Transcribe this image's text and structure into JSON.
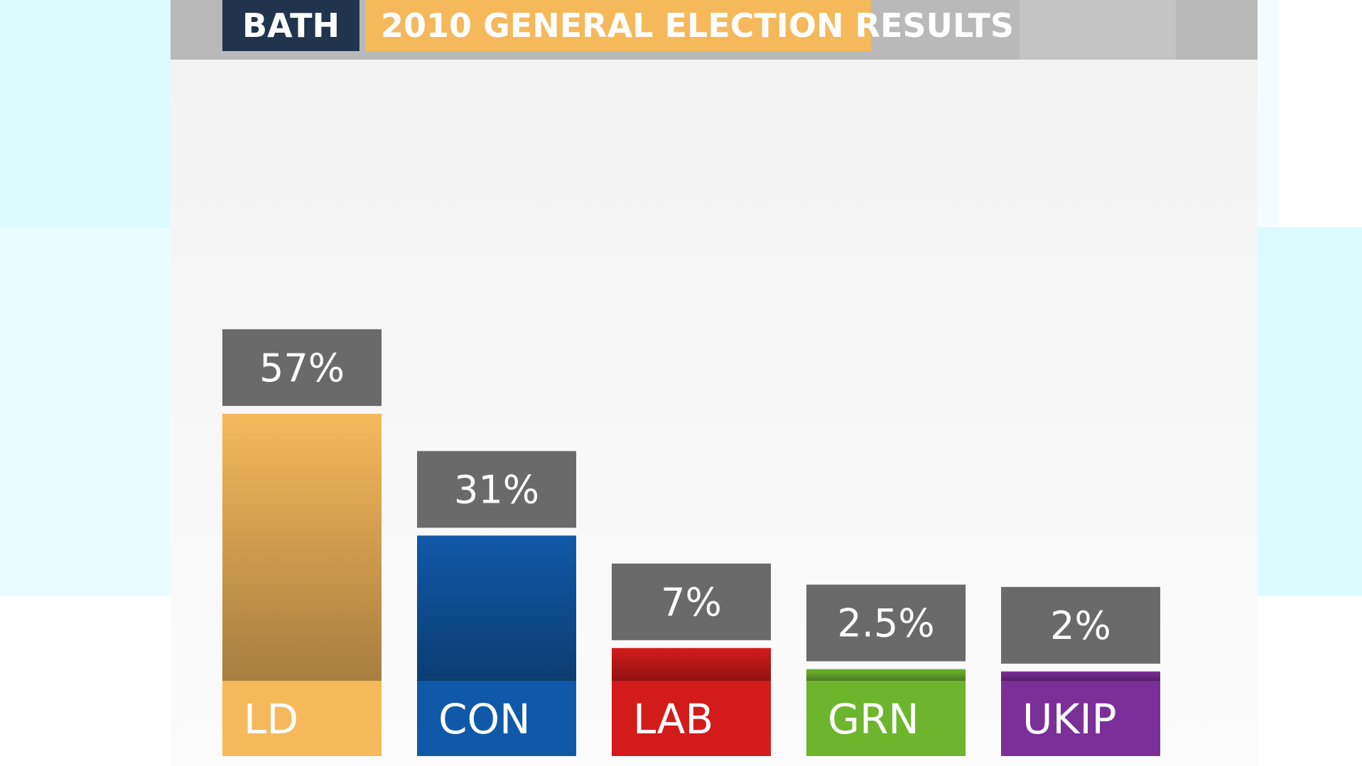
{
  "header": {
    "place": "BATH",
    "title": "2010 GENERAL ELECTION RESULTS"
  },
  "colors": {
    "label_box": "#6a6a6a",
    "title_place_bg": "#20344e",
    "title_bg": "#f5b95c"
  },
  "chart_data": {
    "type": "bar",
    "title": "2010 GENERAL ELECTION RESULTS",
    "categories": [
      "LD",
      "CON",
      "LAB",
      "GRN",
      "UKIP"
    ],
    "values": [
      57,
      31,
      7,
      2.5,
      2
    ],
    "value_labels": [
      "57%",
      "31%",
      "7%",
      "2.5%",
      "2%"
    ],
    "colors": [
      "#f5b95c",
      "#1059a8",
      "#d41b1b",
      "#6db52d",
      "#7b2f98"
    ],
    "xlabel": "",
    "ylabel": "",
    "grid": false,
    "legend": "none"
  }
}
